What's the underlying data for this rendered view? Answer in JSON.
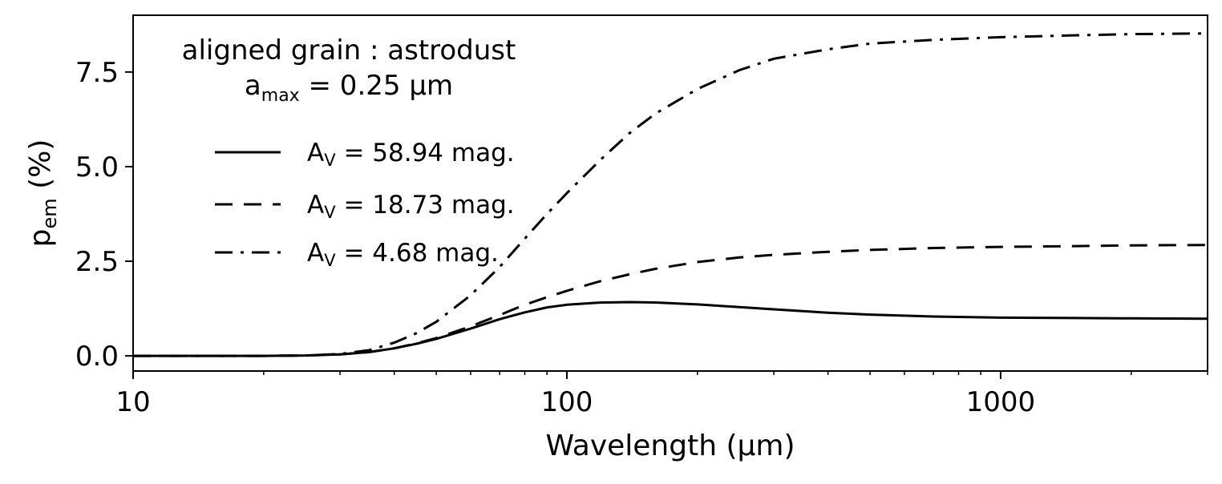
{
  "chart_data": {
    "type": "line",
    "title": "",
    "annotation": {
      "line1": "aligned grain : astrodust",
      "line2_prefix": "a",
      "line2_sub": "max",
      "line2_rest": " = 0.25 μm"
    },
    "xlabel": "Wavelength (μm)",
    "ylabel": "p",
    "ylabel_sub": "em",
    "ylabel_rest": " (%)",
    "xscale": "log",
    "xlim": [
      10,
      3000
    ],
    "ylim": [
      -0.4,
      9.0
    ],
    "x_ticks": [
      10,
      100,
      1000
    ],
    "x_tick_labels": [
      "10",
      "100",
      "1000"
    ],
    "y_ticks": [
      0.0,
      2.5,
      5.0,
      7.5
    ],
    "y_tick_labels": [
      "0.0",
      "2.5",
      "5.0",
      "7.5"
    ],
    "grid": false,
    "legend_position": "upper-left",
    "x": [
      10,
      15,
      20,
      25,
      30,
      35,
      40,
      45,
      50,
      60,
      70,
      80,
      90,
      100,
      120,
      140,
      160,
      200,
      250,
      300,
      400,
      500,
      700,
      1000,
      1500,
      2000,
      3000
    ],
    "series": [
      {
        "name": "A_V = 58.94 mag.",
        "label_prefix": "A",
        "label_sub": "V",
        "label_rest": " = 58.94 mag.",
        "style": "solid",
        "values": [
          0.0,
          0.0,
          0.0,
          0.01,
          0.04,
          0.1,
          0.2,
          0.32,
          0.45,
          0.72,
          0.97,
          1.15,
          1.28,
          1.35,
          1.41,
          1.42,
          1.41,
          1.36,
          1.29,
          1.23,
          1.14,
          1.09,
          1.04,
          1.01,
          1.0,
          0.99,
          0.98
        ]
      },
      {
        "name": "A_V = 18.73 mag.",
        "label_prefix": "A",
        "label_sub": "V",
        "label_rest": " = 18.73 mag.",
        "style": "dashed",
        "values": [
          0.0,
          0.0,
          0.0,
          0.01,
          0.04,
          0.1,
          0.2,
          0.33,
          0.47,
          0.78,
          1.08,
          1.35,
          1.55,
          1.72,
          1.98,
          2.16,
          2.3,
          2.48,
          2.6,
          2.67,
          2.75,
          2.8,
          2.85,
          2.88,
          2.9,
          2.92,
          2.93
        ]
      },
      {
        "name": "A_V = 4.68 mag.",
        "label_prefix": "A",
        "label_sub": "V",
        "label_rest": " = 4.68 mag.",
        "style": "dashdot",
        "values": [
          0.0,
          0.0,
          0.0,
          0.01,
          0.05,
          0.15,
          0.35,
          0.6,
          0.9,
          1.6,
          2.35,
          3.1,
          3.75,
          4.3,
          5.2,
          5.9,
          6.4,
          7.05,
          7.55,
          7.85,
          8.1,
          8.25,
          8.35,
          8.42,
          8.47,
          8.5,
          8.52
        ]
      }
    ]
  }
}
